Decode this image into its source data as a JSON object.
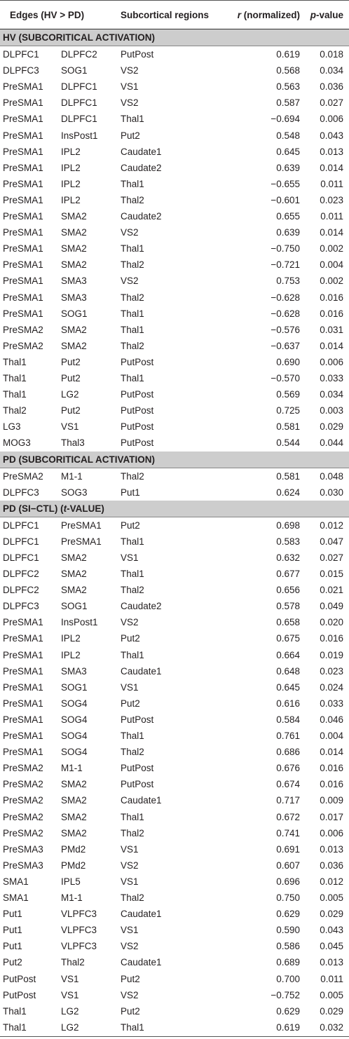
{
  "table": {
    "header": [
      [
        {
          "text": "Edges (HV > PD)",
          "italic": false
        }
      ],
      [
        {
          "text": "Subcortical regions",
          "italic": false
        }
      ],
      [
        {
          "text": "r",
          "italic": true
        },
        {
          "text": " (normalized)",
          "italic": false
        }
      ],
      [
        {
          "text": "p",
          "italic": true
        },
        {
          "text": "-value",
          "italic": false
        }
      ]
    ],
    "sections": [
      {
        "title": [
          {
            "text": "HV (SUBCORITICAL ACTIVATION)",
            "italic": false
          }
        ],
        "rows": [
          [
            "DLPFC1",
            "DLPFC2",
            "PutPost",
            "0.619",
            "0.018"
          ],
          [
            "DLPFC3",
            "SOG1",
            "VS2",
            "0.568",
            "0.034"
          ],
          [
            "PreSMA1",
            "DLPFC1",
            "VS1",
            "0.563",
            "0.036"
          ],
          [
            "PreSMA1",
            "DLPFC1",
            "VS2",
            "0.587",
            "0.027"
          ],
          [
            "PreSMA1",
            "DLPFC1",
            "Thal1",
            "−0.694",
            "0.006"
          ],
          [
            "PreSMA1",
            "InsPost1",
            "Put2",
            "0.548",
            "0.043"
          ],
          [
            "PreSMA1",
            "IPL2",
            "Caudate1",
            "0.645",
            "0.013"
          ],
          [
            "PreSMA1",
            "IPL2",
            "Caudate2",
            "0.639",
            "0.014"
          ],
          [
            "PreSMA1",
            "IPL2",
            "Thal1",
            "−0.655",
            "0.011"
          ],
          [
            "PreSMA1",
            "IPL2",
            "Thal2",
            "−0.601",
            "0.023"
          ],
          [
            "PreSMA1",
            "SMA2",
            "Caudate2",
            "0.655",
            "0.011"
          ],
          [
            "PreSMA1",
            "SMA2",
            "VS2",
            "0.639",
            "0.014"
          ],
          [
            "PreSMA1",
            "SMA2",
            "Thal1",
            "−0.750",
            "0.002"
          ],
          [
            "PreSMA1",
            "SMA2",
            "Thal2",
            "−0.721",
            "0.004"
          ],
          [
            "PreSMA1",
            "SMA3",
            "VS2",
            "0.753",
            "0.002"
          ],
          [
            "PreSMA1",
            "SMA3",
            "Thal2",
            "−0.628",
            "0.016"
          ],
          [
            "PreSMA1",
            "SOG1",
            "Thal1",
            "−0.628",
            "0.016"
          ],
          [
            "PreSMA2",
            "SMA2",
            "Thal1",
            "−0.576",
            "0.031"
          ],
          [
            "PreSMA2",
            "SMA2",
            "Thal2",
            "−0.637",
            "0.014"
          ],
          [
            "Thal1",
            "Put2",
            "PutPost",
            "0.690",
            "0.006"
          ],
          [
            "Thal1",
            "Put2",
            "Thal1",
            "−0.570",
            "0.033"
          ],
          [
            "Thal1",
            "LG2",
            "PutPost",
            "0.569",
            "0.034"
          ],
          [
            "Thal2",
            "Put2",
            "PutPost",
            "0.725",
            "0.003"
          ],
          [
            "LG3",
            "VS1",
            "PutPost",
            "0.581",
            "0.029"
          ],
          [
            "MOG3",
            "Thal3",
            "PutPost",
            "0.544",
            "0.044"
          ]
        ]
      },
      {
        "title": [
          {
            "text": "PD (SUBCORITICAL ACTIVATION)",
            "italic": false
          }
        ],
        "rows": [
          [
            "PreSMA2",
            "M1-1",
            "Thal2",
            "0.581",
            "0.048"
          ],
          [
            "DLPFC3",
            "SOG3",
            "Put1",
            "0.624",
            "0.030"
          ]
        ]
      },
      {
        "title": [
          {
            "text": "PD (SI−CTL) (",
            "italic": false
          },
          {
            "text": "t",
            "italic": true
          },
          {
            "text": "-VALUE)",
            "italic": false
          }
        ],
        "rows": [
          [
            "DLPFC1",
            "PreSMA1",
            "Put2",
            "0.698",
            "0.012"
          ],
          [
            "DLPFC1",
            "PreSMA1",
            "Thal1",
            "0.583",
            "0.047"
          ],
          [
            "DLPFC1",
            "SMA2",
            "VS1",
            "0.632",
            "0.027"
          ],
          [
            "DLPFC2",
            "SMA2",
            "Thal1",
            "0.677",
            "0.015"
          ],
          [
            "DLPFC2",
            "SMA2",
            "Thal2",
            "0.656",
            "0.021"
          ],
          [
            "DLPFC3",
            "SOG1",
            "Caudate2",
            "0.578",
            "0.049"
          ],
          [
            "PreSMA1",
            "InsPost1",
            "VS2",
            "0.658",
            "0.020"
          ],
          [
            "PreSMA1",
            "IPL2",
            "Put2",
            "0.675",
            "0.016"
          ],
          [
            "PreSMA1",
            "IPL2",
            "Thal1",
            "0.664",
            "0.019"
          ],
          [
            "PreSMA1",
            "SMA3",
            "Caudate1",
            "0.648",
            "0.023"
          ],
          [
            "PreSMA1",
            "SOG1",
            "VS1",
            "0.645",
            "0.024"
          ],
          [
            "PreSMA1",
            "SOG4",
            "Put2",
            "0.616",
            "0.033"
          ],
          [
            "PreSMA1",
            "SOG4",
            "PutPost",
            "0.584",
            "0.046"
          ],
          [
            "PreSMA1",
            "SOG4",
            "Thal1",
            "0.761",
            "0.004"
          ],
          [
            "PreSMA1",
            "SOG4",
            "Thal2",
            "0.686",
            "0.014"
          ],
          [
            "PreSMA2",
            "M1-1",
            "PutPost",
            "0.676",
            "0.016"
          ],
          [
            "PreSMA2",
            "SMA2",
            "PutPost",
            "0.674",
            "0.016"
          ],
          [
            "PreSMA2",
            "SMA2",
            "Caudate1",
            "0.717",
            "0.009"
          ],
          [
            "PreSMA2",
            "SMA2",
            "Thal1",
            "0.672",
            "0.017"
          ],
          [
            "PreSMA2",
            "SMA2",
            "Thal2",
            "0.741",
            "0.006"
          ],
          [
            "PreSMA3",
            "PMd2",
            "VS1",
            "0.691",
            "0.013"
          ],
          [
            "PreSMA3",
            "PMd2",
            "VS2",
            "0.607",
            "0.036"
          ],
          [
            "SMA1",
            "IPL5",
            "VS1",
            "0.696",
            "0.012"
          ],
          [
            "SMA1",
            "M1-1",
            "Thal2",
            "0.750",
            "0.005"
          ],
          [
            "Put1",
            "VLPFC3",
            "Caudate1",
            "0.629",
            "0.029"
          ],
          [
            "Put1",
            "VLPFC3",
            "VS1",
            "0.590",
            "0.043"
          ],
          [
            "Put1",
            "VLPFC3",
            "VS2",
            "0.586",
            "0.045"
          ],
          [
            "Put2",
            "Thal2",
            "Caudate1",
            "0.689",
            "0.013"
          ],
          [
            "PutPost",
            "VS1",
            "Put2",
            "0.700",
            "0.011"
          ],
          [
            "PutPost",
            "VS1",
            "VS2",
            "−0.752",
            "0.005"
          ],
          [
            "Thal1",
            "LG2",
            "Put2",
            "0.629",
            "0.029"
          ],
          [
            "Thal1",
            "LG2",
            "Thal1",
            "0.619",
            "0.032"
          ]
        ]
      }
    ]
  }
}
